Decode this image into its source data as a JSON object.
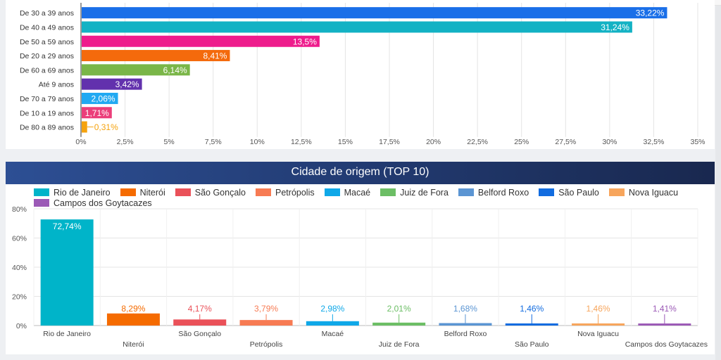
{
  "colors": {
    "age_bars": [
      "#1a6fe8",
      "#13b2c4",
      "#ee1c8c",
      "#f46a0c",
      "#7ab648",
      "#6231ad",
      "#21a9f2",
      "#eb3e7a",
      "#f5a30e"
    ],
    "city_bars": [
      "#00b4c9",
      "#f56b00",
      "#ea5159",
      "#f77b53",
      "#0fa8e8",
      "#6cbe65",
      "#5b95d3",
      "#126ce0",
      "#f7a55c",
      "#9b59b6"
    ],
    "title_bar": "#223b72"
  },
  "age_chart": {
    "title": "",
    "legend": [],
    "chart_data": {
      "type": "bar",
      "orientation": "horizontal",
      "categories": [
        "De 30 a 39 anos",
        "De 40 a 49 anos",
        "De 50 a 59 anos",
        "De 20 a 29 anos",
        "De 60 a 69 anos",
        "Até 9 anos",
        "De 70 a 79 anos",
        "De 10 a 19 anos",
        "De 80 a 89 anos"
      ],
      "values": [
        33.22,
        31.24,
        13.5,
        8.41,
        6.14,
        3.42,
        2.06,
        1.71,
        0.31
      ],
      "value_labels": [
        "33,22%",
        "31,24%",
        "13,5%",
        "8,41%",
        "6,14%",
        "3,42%",
        "2,06%",
        "1,71%",
        "0,31%"
      ],
      "xlim": [
        0,
        35
      ],
      "xticks": [
        0,
        2.5,
        5,
        7.5,
        10,
        12.5,
        15,
        17.5,
        20,
        22.5,
        25,
        27.5,
        30,
        32.5,
        35
      ],
      "xtick_labels": [
        "0%",
        "2,5%",
        "5%",
        "7,5%",
        "10%",
        "12,5%",
        "15%",
        "17,5%",
        "20%",
        "22,5%",
        "25%",
        "27,5%",
        "30%",
        "32,5%",
        "35%"
      ],
      "grid": true
    }
  },
  "city_chart": {
    "title": "Cidade de origem (TOP 10)",
    "legend": [
      "Rio de Janeiro",
      "Niterói",
      "São Gonçalo",
      "Petrópolis",
      "Macaé",
      "Juiz de Fora",
      "Belford Roxo",
      "São Paulo",
      "Nova Iguacu",
      "Campos dos Goytacazes"
    ],
    "chart_data": {
      "type": "bar",
      "orientation": "vertical",
      "categories": [
        "Rio de Janeiro",
        "Niterói",
        "São Gonçalo",
        "Petrópolis",
        "Macaé",
        "Juiz de Fora",
        "Belford Roxo",
        "São Paulo",
        "Nova Iguacu",
        "Campos dos Goytacazes"
      ],
      "values": [
        72.74,
        8.29,
        4.17,
        3.79,
        2.98,
        2.01,
        1.68,
        1.46,
        1.46,
        1.41
      ],
      "value_labels": [
        "72,74%",
        "8,29%",
        "4,17%",
        "3,79%",
        "2,98%",
        "2,01%",
        "1,68%",
        "1,46%",
        "1,46%",
        "1,41%"
      ],
      "ylim": [
        0,
        80
      ],
      "yticks": [
        0,
        20,
        40,
        60,
        80
      ],
      "ytick_labels": [
        "0%",
        "20%",
        "40%",
        "60%",
        "80%"
      ],
      "grid": true,
      "legend_position": "top"
    }
  }
}
